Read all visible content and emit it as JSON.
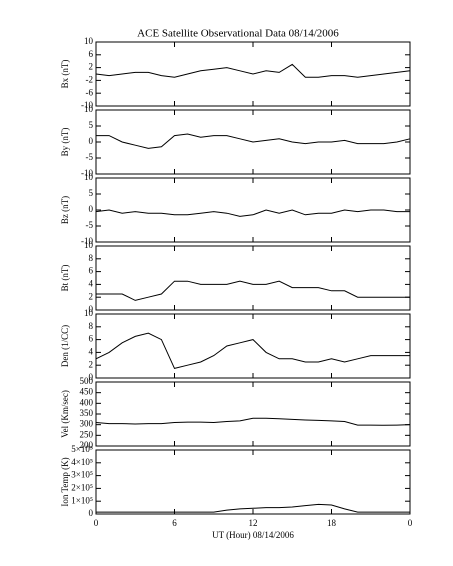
{
  "chart_data": [
    {
      "type": "line",
      "title": "ACE Satellite Observational Data   08/14/2006",
      "ylabel": "Bx (nT)",
      "xlim": [
        0,
        24
      ],
      "ylim": [
        -10,
        10
      ],
      "yticks": [
        -10,
        -6,
        -2,
        2,
        6,
        10
      ],
      "color": "#000000",
      "x": [
        0,
        1,
        2,
        3,
        4,
        5,
        6,
        7,
        8,
        9,
        10,
        11,
        12,
        13,
        14,
        15,
        16,
        17,
        18,
        19,
        20,
        21,
        22,
        23,
        24
      ],
      "values": [
        0,
        -0.5,
        0,
        0.5,
        0.5,
        -0.5,
        -1,
        0,
        1,
        1.5,
        2,
        1,
        0,
        1,
        0.5,
        3,
        -1,
        -1,
        -0.5,
        -0.5,
        -1,
        -0.5,
        0,
        0.5,
        1
      ]
    },
    {
      "type": "line",
      "ylabel": "By (nT)",
      "xlim": [
        0,
        24
      ],
      "ylim": [
        -10,
        10
      ],
      "yticks": [
        -10,
        -5,
        0,
        5,
        10
      ],
      "color": "#000000",
      "x": [
        0,
        1,
        2,
        3,
        4,
        5,
        6,
        7,
        8,
        9,
        10,
        11,
        12,
        13,
        14,
        15,
        16,
        17,
        18,
        19,
        20,
        21,
        22,
        23,
        24
      ],
      "values": [
        2,
        2,
        0,
        -1,
        -2,
        -1.5,
        2,
        2.5,
        1.5,
        2,
        2,
        1,
        0,
        0.5,
        1,
        0,
        -0.5,
        0,
        0,
        0.5,
        -0.5,
        -0.5,
        -0.5,
        0,
        1
      ]
    },
    {
      "type": "line",
      "ylabel": "Bz (nT)",
      "xlim": [
        0,
        24
      ],
      "ylim": [
        -10,
        10
      ],
      "yticks": [
        -10,
        -5,
        0,
        5,
        10
      ],
      "color": "#000000",
      "x": [
        0,
        1,
        2,
        3,
        4,
        5,
        6,
        7,
        8,
        9,
        10,
        11,
        12,
        13,
        14,
        15,
        16,
        17,
        18,
        19,
        20,
        21,
        22,
        23,
        24
      ],
      "values": [
        -0.5,
        0,
        -1,
        -0.5,
        -1,
        -1,
        -1.5,
        -1.5,
        -1,
        -0.5,
        -1,
        -2,
        -1.5,
        0,
        -1,
        0,
        -1.5,
        -1,
        -1,
        0,
        -0.5,
        0,
        0,
        -0.5,
        -0.5
      ]
    },
    {
      "type": "line",
      "ylabel": "Bt (nT)",
      "xlim": [
        0,
        24
      ],
      "ylim": [
        0,
        10
      ],
      "yticks": [
        0,
        2,
        4,
        6,
        8,
        10
      ],
      "color": "#000000",
      "x": [
        0,
        1,
        2,
        3,
        4,
        5,
        6,
        7,
        8,
        9,
        10,
        11,
        12,
        13,
        14,
        15,
        16,
        17,
        18,
        19,
        20,
        21,
        22,
        23,
        24
      ],
      "values": [
        2.5,
        2.5,
        2.5,
        1.5,
        2,
        2.5,
        4.5,
        4.5,
        4,
        4,
        4,
        4.5,
        4,
        4,
        4.5,
        3.5,
        3.5,
        3.5,
        3,
        3,
        2,
        2,
        2,
        2,
        2
      ]
    },
    {
      "type": "line",
      "ylabel": "Den (1/CC)",
      "xlim": [
        0,
        24
      ],
      "ylim": [
        0,
        10
      ],
      "yticks": [
        0,
        2,
        4,
        6,
        8,
        10
      ],
      "color": "#000000",
      "x": [
        0,
        1,
        2,
        3,
        4,
        5,
        6,
        7,
        8,
        9,
        10,
        11,
        12,
        13,
        14,
        15,
        16,
        17,
        18,
        19,
        20,
        21,
        22,
        23,
        24
      ],
      "values": [
        3,
        4,
        5.5,
        6.5,
        7,
        6,
        1.5,
        2,
        2.5,
        3.5,
        5,
        5.5,
        6,
        4,
        3,
        3,
        2.5,
        2.5,
        3,
        2.5,
        3,
        3.5,
        3.5,
        3.5,
        3.5
      ]
    },
    {
      "type": "line",
      "ylabel": "Vel (Km/sec)",
      "xlim": [
        0,
        24
      ],
      "ylim": [
        200,
        500
      ],
      "yticks": [
        200,
        250,
        300,
        350,
        400,
        450,
        500
      ],
      "color": "#000000",
      "x": [
        0,
        1,
        2,
        3,
        4,
        5,
        6,
        7,
        8,
        9,
        10,
        11,
        12,
        13,
        14,
        15,
        16,
        17,
        18,
        19,
        20,
        21,
        22,
        23,
        24
      ],
      "values": [
        310,
        305,
        305,
        303,
        305,
        305,
        310,
        312,
        312,
        310,
        315,
        318,
        330,
        330,
        328,
        325,
        322,
        320,
        318,
        315,
        298,
        298,
        297,
        298,
        300
      ]
    },
    {
      "type": "line",
      "ylabel": "Ion Temp (K)",
      "xlabel": "UT (Hour)  08/14/2006",
      "xlim": [
        0,
        24
      ],
      "xticks": [
        0,
        6,
        12,
        18,
        {
          "value": 24,
          "label": "0"
        }
      ],
      "ylim": [
        0,
        500000
      ],
      "yticks": [
        0,
        {
          "value": 100000,
          "label": "1×10⁵"
        },
        {
          "value": 200000,
          "label": "2×10⁵"
        },
        {
          "value": 300000,
          "label": "3×10⁵"
        },
        {
          "value": 400000,
          "label": "4×10⁵"
        },
        {
          "value": 500000,
          "label": "5×10⁵"
        }
      ],
      "color": "#000000",
      "x": [
        0,
        1,
        2,
        3,
        4,
        5,
        6,
        7,
        8,
        9,
        10,
        11,
        12,
        13,
        14,
        15,
        16,
        17,
        18,
        19,
        20,
        21,
        22,
        23,
        24
      ],
      "values": [
        15000,
        15000,
        15000,
        15000,
        15000,
        15000,
        15000,
        15000,
        15000,
        15000,
        30000,
        40000,
        45000,
        50000,
        50000,
        55000,
        65000,
        75000,
        70000,
        40000,
        15000,
        15000,
        15000,
        15000,
        15000
      ]
    }
  ]
}
